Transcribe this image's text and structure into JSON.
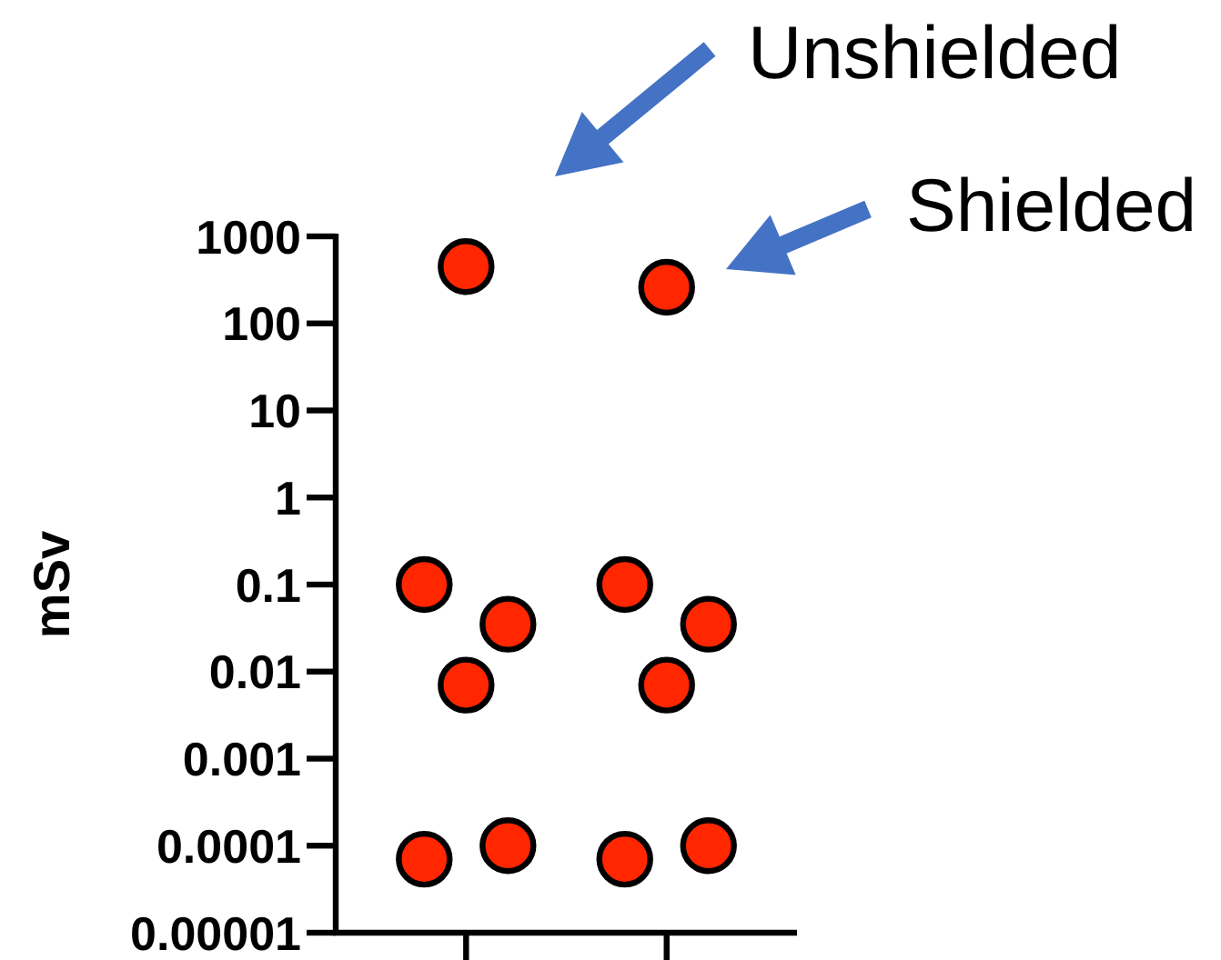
{
  "chart_data": {
    "type": "scatter",
    "ylabel": "mSv",
    "log": "y",
    "marker": "circle",
    "ylim": [
      1e-05,
      1000
    ],
    "yticks": [
      1000,
      100,
      10,
      1,
      0.1,
      0.01,
      0.001,
      0.0001,
      {
        "value": 1e-05,
        "label": "0.00001"
      }
    ],
    "categories": [
      null,
      null
    ],
    "series": [
      {
        "color": "#ff2600",
        "values": [
          450,
          260
        ]
      },
      {
        "color": "#ff2600",
        "values": [
          0.1,
          0.1
        ]
      },
      {
        "color": "#ff2600",
        "values": [
          0.035,
          0.035
        ]
      },
      {
        "color": "#ff2600",
        "values": [
          0.007,
          0.007
        ]
      },
      {
        "color": "#ff2600",
        "values": [
          7e-05,
          7e-05
        ]
      },
      {
        "color": "#ff2600",
        "values": [
          0.0001,
          0.0001
        ]
      }
    ],
    "annotations": [
      "Unshielded",
      "Shielded"
    ]
  }
}
